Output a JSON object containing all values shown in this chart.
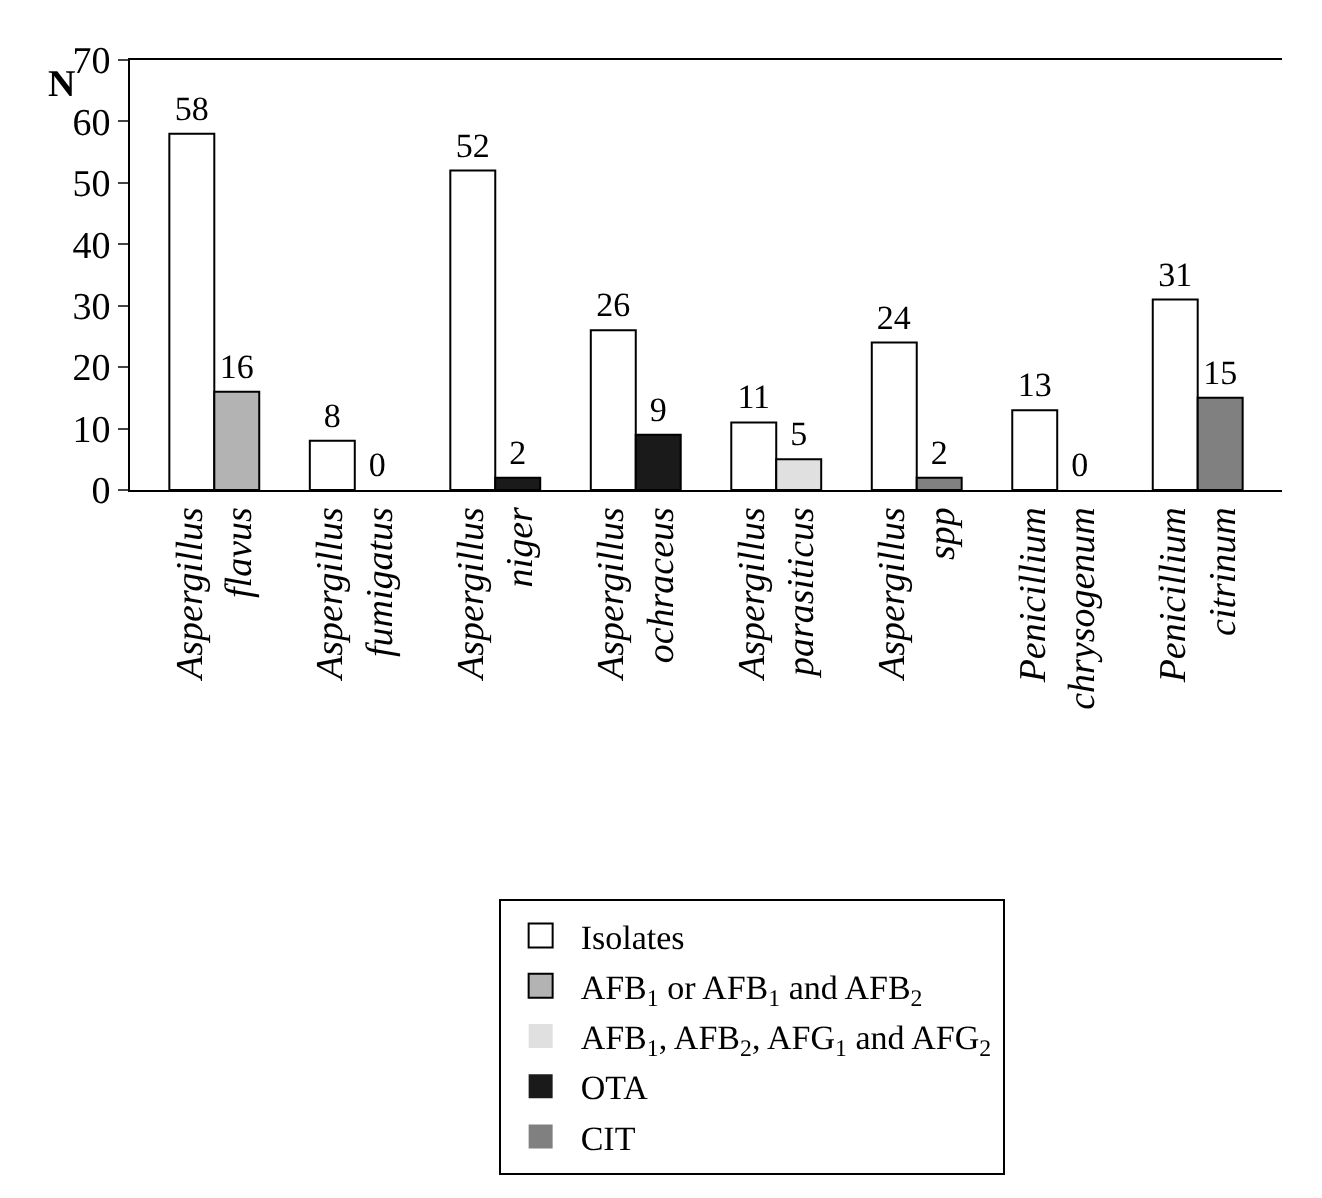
{
  "chart_data": {
    "type": "bar",
    "ylabel": "N",
    "categories": [
      "Aspergillus\nflavus",
      "Aspergillus\nfumigatus",
      "Aspergillus\nniger",
      "Aspergillus\nochraceus",
      "Aspergillus\nparasiticus",
      "Aspergillus\nspp",
      "Penicillium\nchrysogenum",
      "Penicillium\ncitrinum"
    ],
    "series": [
      {
        "name": "Isolates",
        "color": "#ffffff",
        "values": [
          58,
          8,
          52,
          26,
          11,
          24,
          13,
          31
        ]
      },
      {
        "name": "AFB$_{1}$ or AFB$_{1}$ and AFB$_{2}$",
        "color": "#b3b3b3",
        "values": [
          16,
          0,
          null,
          null,
          null,
          null,
          null,
          null
        ]
      },
      {
        "name": "AFB$_{1}$, AFB$_{2}$, AFG$_{1}$ and AFG$_{2}$",
        "color": "#e0e0e0",
        "values": [
          null,
          null,
          null,
          null,
          5,
          null,
          null,
          null
        ]
      },
      {
        "name": "OTA",
        "color": "#1a1a1a",
        "values": [
          null,
          null,
          2,
          9,
          null,
          null,
          null,
          null
        ]
      },
      {
        "name": "CIT",
        "color": "#808080",
        "values": [
          null,
          null,
          null,
          null,
          null,
          2,
          0,
          15
        ]
      }
    ],
    "ylim": [
      0,
      70
    ],
    "yticks": [
      0,
      10,
      20,
      30,
      40,
      50,
      60,
      70
    ],
    "data_labels": true,
    "legend": "bottom"
  }
}
